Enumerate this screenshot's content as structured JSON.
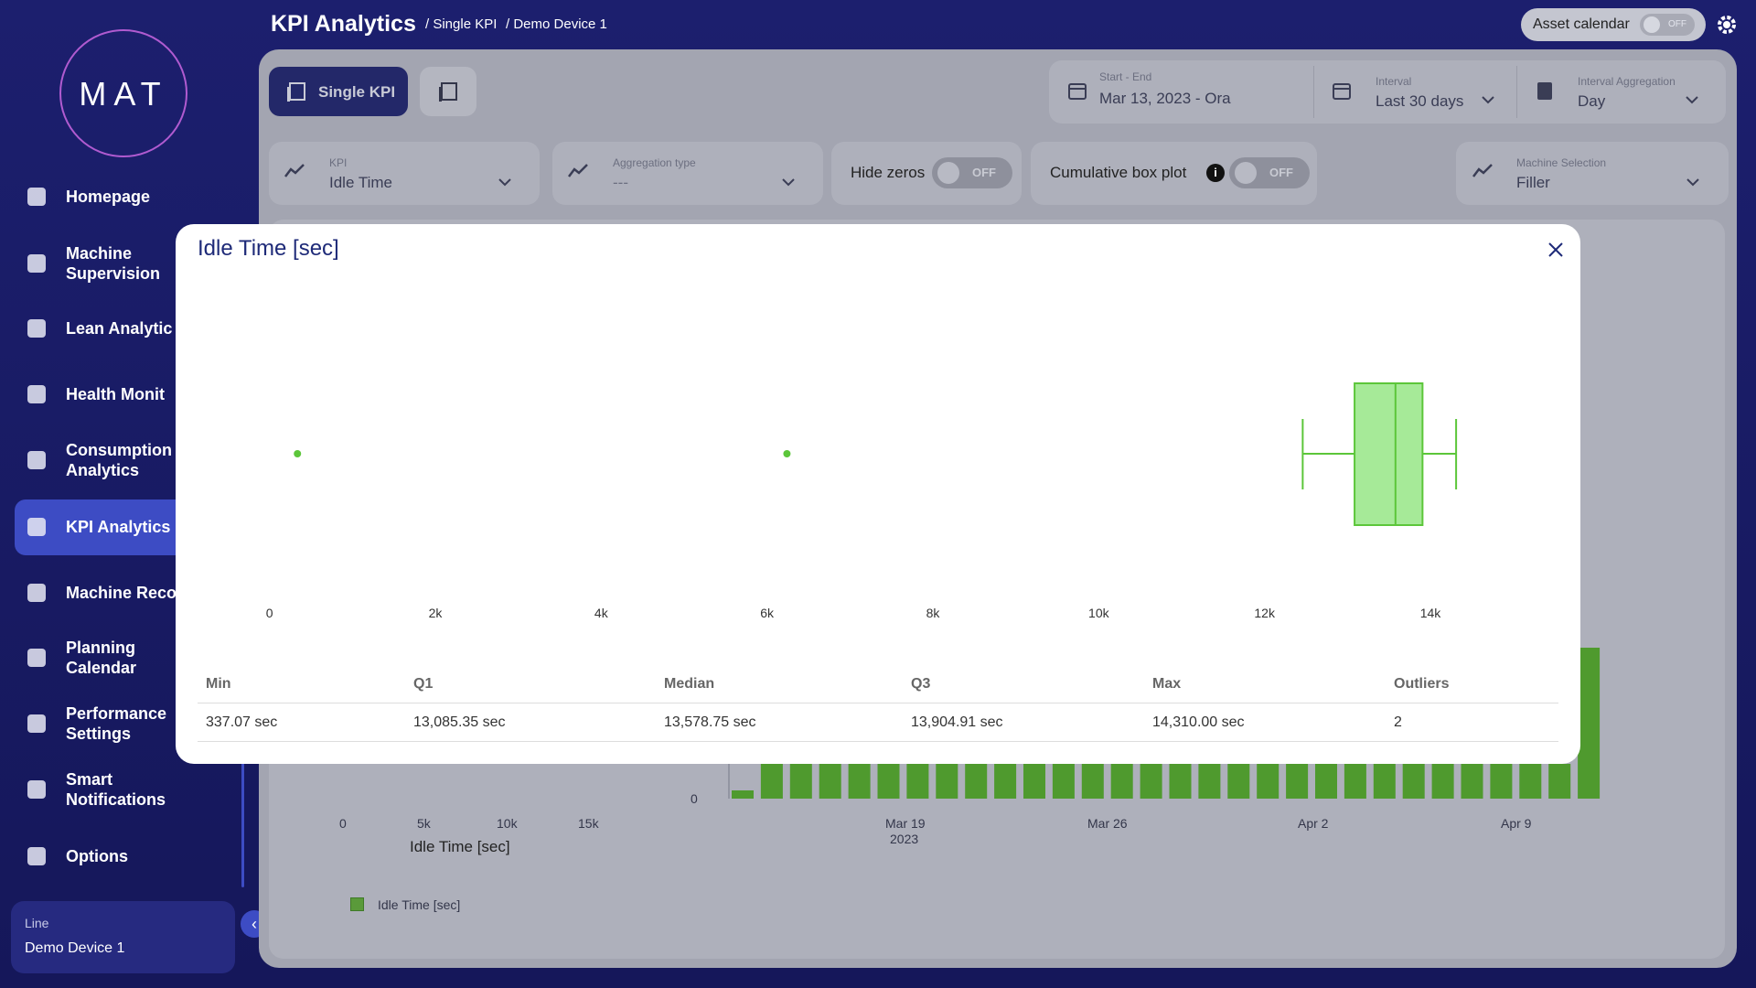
{
  "sidebar": {
    "logo": "MAT",
    "nav": [
      "Homepage",
      "Machine Supervision",
      "Lean Analytic",
      "Health Monit",
      "Consumption Analytics",
      "KPI Analytics",
      "Machine Reco",
      "Planning Calendar",
      "Performance Settings",
      "Smart Notifications",
      "Options"
    ],
    "line": {
      "label": "Line",
      "value": "Demo Device 1"
    }
  },
  "header": {
    "title": "KPI Analytics",
    "breadcrumbs": [
      "/ Single KPI",
      "/ Demo Device 1"
    ],
    "asset_calendar": {
      "label": "Asset calendar",
      "state": "OFF"
    }
  },
  "toolbar": {
    "single_kpi": "Single KPI",
    "date_range": {
      "label": "Start - End",
      "value": "Mar 13, 2023 - Ora"
    },
    "interval": {
      "label": "Interval",
      "value": "Last 30 days"
    },
    "interval_aggregation": {
      "label": "Interval Aggregation",
      "value": "Day"
    }
  },
  "filters": {
    "kpi": {
      "label": "KPI",
      "value": "Idle Time"
    },
    "aggregation_type": {
      "label": "Aggregation type",
      "value": "---"
    },
    "hide_zeros": {
      "label": "Hide zeros",
      "state": "OFF"
    },
    "cumulative_box_plot": {
      "label": "Cumulative box plot",
      "state": "OFF"
    },
    "machine_selection": {
      "label": "Machine Selection",
      "value": "Filler"
    }
  },
  "background_chart": {
    "left_ticks": [
      "0",
      "5k",
      "10k",
      "15k"
    ],
    "left_axis_label": "Idle Time [sec]",
    "right_y_tick": "0",
    "x_ticks": [
      "Mar 19",
      "Mar 26",
      "Apr 2",
      "Apr 9"
    ],
    "x_year": "2023",
    "legend": "Idle Time [sec]"
  },
  "modal": {
    "chart_data": {
      "type": "box",
      "title": "Idle Time [sec]",
      "orientation": "horizontal",
      "color": "#5cc63a",
      "box_color": "#a6ea98",
      "whisker_low": 12460,
      "q1": 13085.35,
      "median": 13578.75,
      "q3": 13904.91,
      "whisker_high": 14310,
      "outliers": [
        337.07,
        6240
      ],
      "xlim": [
        -1000,
        15500
      ],
      "xticks": [
        0,
        {
          "value": 2000,
          "label": "2k"
        },
        {
          "value": 4000,
          "label": "4k"
        },
        {
          "value": 6000,
          "label": "6k"
        },
        {
          "value": 8000,
          "label": "8k"
        },
        {
          "value": 10000,
          "label": "10k"
        },
        {
          "value": 12000,
          "label": "12k"
        },
        {
          "value": 14000,
          "label": "14k"
        }
      ]
    },
    "table": {
      "header": [
        "Min",
        "Q1",
        "Median",
        "Q3",
        "Max",
        "Outliers"
      ],
      "rows": [
        [
          "337.07 sec",
          "13,085.35 sec",
          "13,578.75 sec",
          "13,904.91 sec",
          "14,310.00 sec",
          "2"
        ]
      ]
    }
  }
}
